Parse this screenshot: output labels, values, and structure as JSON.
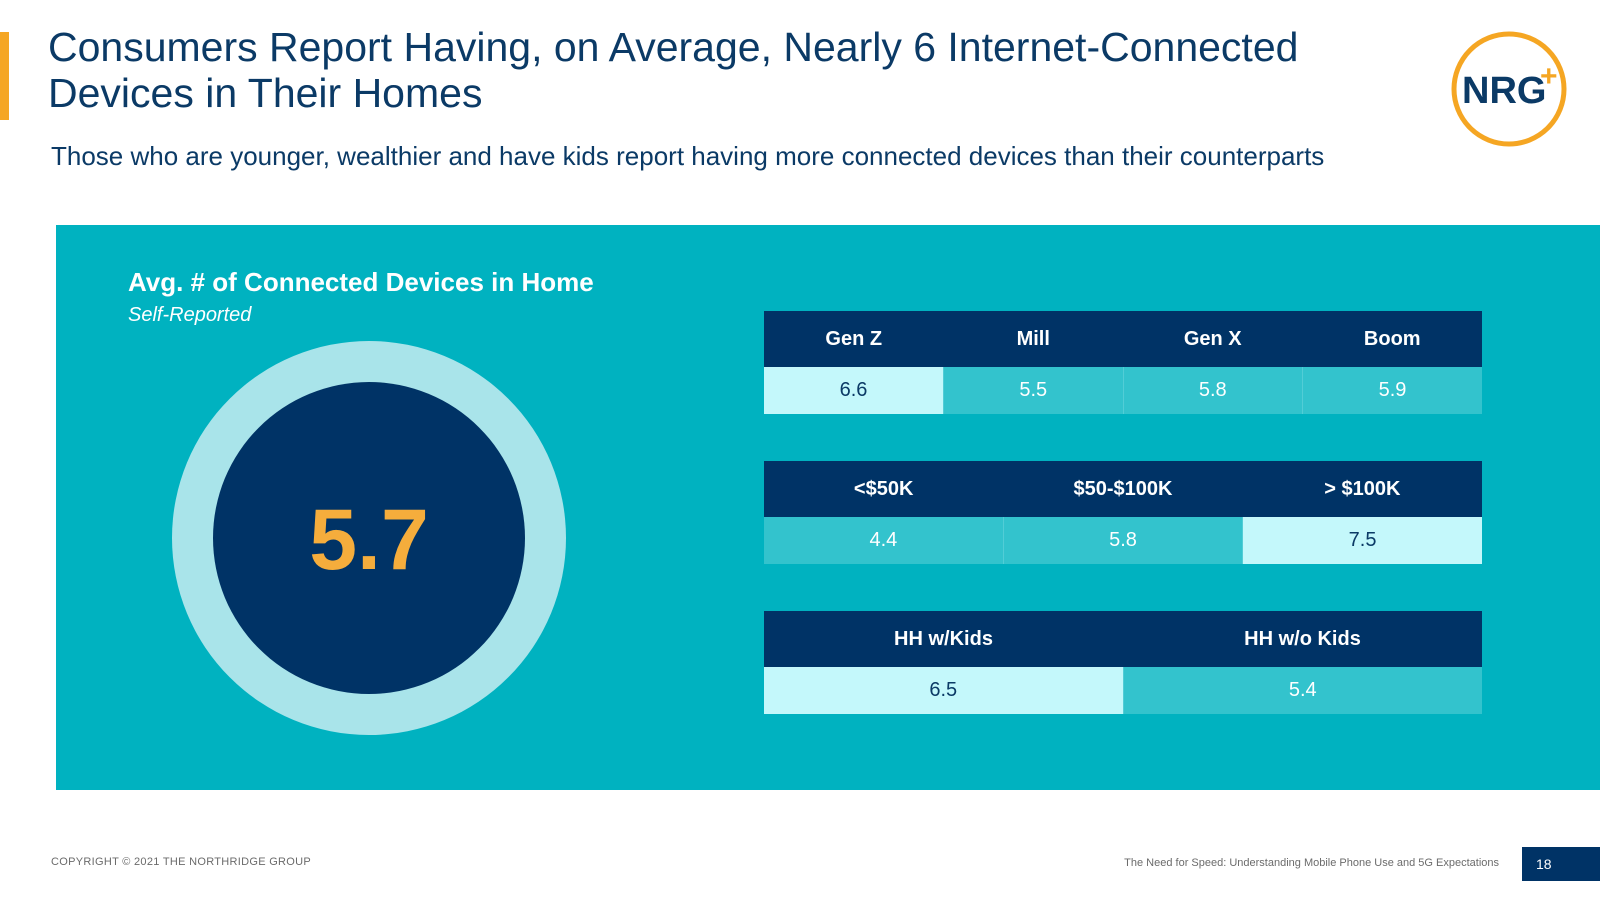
{
  "slide": {
    "title": "Consumers Report Having, on Average, Nearly 6 Internet-Connected Devices in Their Homes",
    "subtitle": "Those who are younger, wealthier and have kids report having more connected devices than their counterparts"
  },
  "logo": {
    "text": "NRG",
    "plus": "+",
    "colors": {
      "navy": "#0b3a66",
      "teal": "#00b2c0",
      "orange": "#f5a623"
    }
  },
  "panel": {
    "title": "Avg. # of Connected Devices in Home",
    "subtitle": "Self-Reported",
    "overall_value": "5.7"
  },
  "tables": [
    {
      "headers": [
        "Gen Z",
        "Mill",
        "Gen X",
        "Boom"
      ],
      "values": [
        "6.6",
        "5.5",
        "5.8",
        "5.9"
      ],
      "highlight_index": 0
    },
    {
      "headers": [
        "<$50K",
        "$50-$100K",
        "> $100K"
      ],
      "values": [
        "4.4",
        "5.8",
        "7.5"
      ],
      "highlight_index": 2
    },
    {
      "headers": [
        "HH w/Kids",
        "HH w/o Kids"
      ],
      "values": [
        "6.5",
        "5.4"
      ],
      "highlight_index": 0
    }
  ],
  "footer": {
    "copyright": "COPYRIGHT © 2021 THE NORTHRIDGE GROUP",
    "report_title": "The Need for Speed: Understanding Mobile Phone Use and 5G Expectations",
    "page_number": "18"
  },
  "colors": {
    "panel_bg": "#00b2c0",
    "header_navy": "#003366",
    "cell_teal": "#33c3cd",
    "cell_highlight": "#c4f8fb",
    "big_number": "#f5ad3c",
    "ring": "#a9e4ea"
  }
}
